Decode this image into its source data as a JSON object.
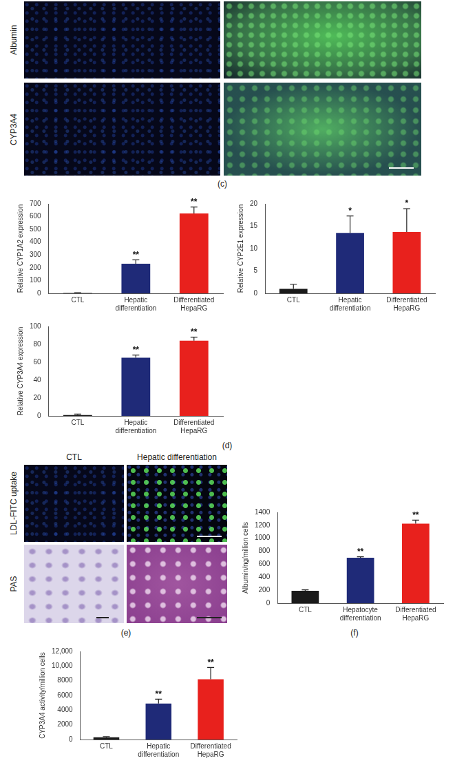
{
  "panel_labels": {
    "c": "(c)",
    "d": "(d)",
    "e": "(e)",
    "f": "(f)"
  },
  "image_panels": {
    "c": {
      "row_labels": [
        "Albumin",
        "CYP3A4"
      ]
    },
    "e": {
      "column_labels": [
        "CTL",
        "Hepatic differentiation"
      ],
      "row_labels": [
        "LDL-FITC uptake",
        "PAS"
      ]
    }
  },
  "chart_data": [
    {
      "type": "bar",
      "y_label": "Relative CYP1A2 expression",
      "categories": [
        "CTL",
        "Hepatic differentiation",
        "Differentiated HepaRG"
      ],
      "values": [
        3,
        232,
        625
      ],
      "errors": [
        2,
        30,
        50
      ],
      "annotations": [
        null,
        "**",
        "**"
      ],
      "colors": [
        "#1a1a1a",
        "#1f2a78",
        "#e8211d"
      ],
      "ylim": [
        0,
        700
      ],
      "yticks": [
        0,
        100,
        200,
        300,
        400,
        500,
        600,
        700
      ],
      "grid": false
    },
    {
      "type": "bar",
      "y_label": "Relative CYP2E1 expression",
      "categories": [
        "CTL",
        "Hepatic differentiation",
        "Differentiated HepaRG"
      ],
      "values": [
        1,
        13.5,
        13.7
      ],
      "errors": [
        1,
        3.8,
        5.2
      ],
      "annotations": [
        null,
        "*",
        "*"
      ],
      "colors": [
        "#1a1a1a",
        "#1f2a78",
        "#e8211d"
      ],
      "ylim": [
        0,
        20
      ],
      "yticks": [
        0,
        5,
        10,
        15,
        20
      ],
      "grid": false
    },
    {
      "type": "bar",
      "y_label": "Relative CYP3A4 expression",
      "categories": [
        "CTL",
        "Hepatic differentiation",
        "Differentiated HepaRG"
      ],
      "values": [
        1,
        65,
        84
      ],
      "errors": [
        1,
        3,
        4
      ],
      "annotations": [
        null,
        "**",
        "**"
      ],
      "colors": [
        "#1a1a1a",
        "#1f2a78",
        "#e8211d"
      ],
      "ylim": [
        0,
        100
      ],
      "yticks": [
        0,
        20,
        40,
        60,
        80,
        100
      ],
      "grid": false
    },
    {
      "type": "bar",
      "y_label": "Albumin/ng/million cells",
      "categories": [
        "CTL",
        "Hepatocyte differentiation",
        "Differentiated HepaRG"
      ],
      "values": [
        190,
        700,
        1225
      ],
      "errors": [
        15,
        15,
        55
      ],
      "annotations": [
        null,
        "**",
        "**"
      ],
      "colors": [
        "#1a1a1a",
        "#1f2a78",
        "#e8211d"
      ],
      "ylim": [
        0,
        1400
      ],
      "yticks": [
        0,
        200,
        400,
        600,
        800,
        1000,
        1200,
        1400
      ],
      "grid": false
    },
    {
      "type": "bar",
      "y_label": "CYP3A4 activity/million cells",
      "categories": [
        "CTL",
        "Hepatic differentiation",
        "Differentiated HepaRG"
      ],
      "values": [
        300,
        4900,
        8200
      ],
      "errors": [
        100,
        600,
        1600
      ],
      "annotations": [
        null,
        "**",
        "**"
      ],
      "colors": [
        "#1a1a1a",
        "#1f2a78",
        "#e8211d"
      ],
      "ylim": [
        0,
        12000
      ],
      "yticks": [
        0,
        2000,
        4000,
        6000,
        8000,
        {
          "value": 10000,
          "label": "10,000"
        },
        {
          "value": 12000,
          "label": "12,000"
        }
      ],
      "grid": false
    }
  ]
}
